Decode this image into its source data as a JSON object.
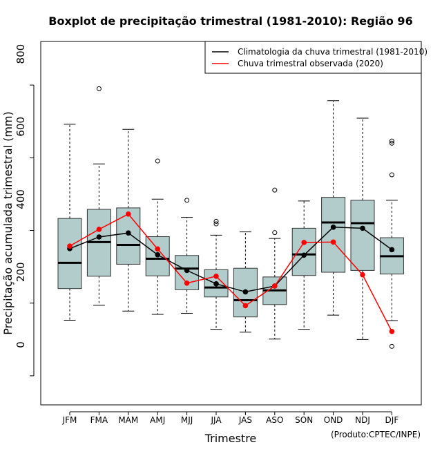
{
  "chart_data": {
    "type": "boxplot",
    "title": "Boxplot de precipitação trimestral (1981-2010): Região 96",
    "xlabel": "Trimestre",
    "ylabel": "Precipitação acumulada trimestral (mm)",
    "credit": "(Produto:CPTEC/INPE)",
    "ylim": [
      -80,
      920
    ],
    "yticks": [
      0,
      200,
      400,
      600,
      800
    ],
    "categories": [
      "JFM",
      "FMA",
      "MAM",
      "AMJ",
      "MJJ",
      "JJA",
      "JAS",
      "ASO",
      "SON",
      "OND",
      "NDJ",
      "DJF"
    ],
    "boxes": [
      {
        "category": "JFM",
        "whisker_low": 153,
        "q1": 240,
        "median": 311,
        "q3": 433,
        "whisker_high": 692,
        "outliers": []
      },
      {
        "category": "FMA",
        "whisker_low": 194,
        "q1": 274,
        "median": 368,
        "q3": 458,
        "whisker_high": 583,
        "outliers": [
          790
        ]
      },
      {
        "category": "MAM",
        "whisker_low": 178,
        "q1": 307,
        "median": 360,
        "q3": 462,
        "whisker_high": 678,
        "outliers": []
      },
      {
        "category": "AMJ",
        "whisker_low": 169,
        "q1": 275,
        "median": 322,
        "q3": 383,
        "whisker_high": 486,
        "outliers": [
          591
        ]
      },
      {
        "category": "MJJ",
        "whisker_low": 172,
        "q1": 237,
        "median": 295,
        "q3": 331,
        "whisker_high": 436,
        "outliers": [
          483
        ]
      },
      {
        "category": "JJA",
        "whisker_low": 128,
        "q1": 217,
        "median": 243,
        "q3": 292,
        "whisker_high": 387,
        "outliers": [
          418,
          425
        ]
      },
      {
        "category": "JAS",
        "whisker_low": 120,
        "q1": 162,
        "median": 208,
        "q3": 296,
        "whisker_high": 396,
        "outliers": []
      },
      {
        "category": "ASO",
        "whisker_low": 101,
        "q1": 196,
        "median": 235,
        "q3": 272,
        "whisker_high": 378,
        "outliers": [
          394,
          511
        ]
      },
      {
        "category": "SON",
        "whisker_low": 128,
        "q1": 276,
        "median": 334,
        "q3": 406,
        "whisker_high": 481,
        "outliers": []
      },
      {
        "category": "OND",
        "whisker_low": 167,
        "q1": 285,
        "median": 422,
        "q3": 491,
        "whisker_high": 757,
        "outliers": []
      },
      {
        "category": "NDJ",
        "whisker_low": 100,
        "q1": 290,
        "median": 420,
        "q3": 483,
        "whisker_high": 709,
        "outliers": []
      },
      {
        "category": "DJF",
        "whisker_low": 152,
        "q1": 280,
        "median": 329,
        "q3": 380,
        "whisker_high": 483,
        "outliers": [
          81,
          553,
          640,
          646
        ]
      }
    ],
    "series": [
      {
        "name": "Climatologia da chuva trimestral (1981-2010)",
        "color": "#000000",
        "values": [
          350,
          382,
          393,
          333,
          290,
          253,
          231,
          247,
          332,
          409,
          406,
          347
        ]
      },
      {
        "name": "Chuva trimestral observada (2020)",
        "color": "#ff0000",
        "values": [
          357,
          403,
          445,
          349,
          255,
          274,
          193,
          247,
          367,
          368,
          278,
          122
        ]
      }
    ],
    "box_fill": "#b2cccc",
    "legend_position": "top-right"
  }
}
